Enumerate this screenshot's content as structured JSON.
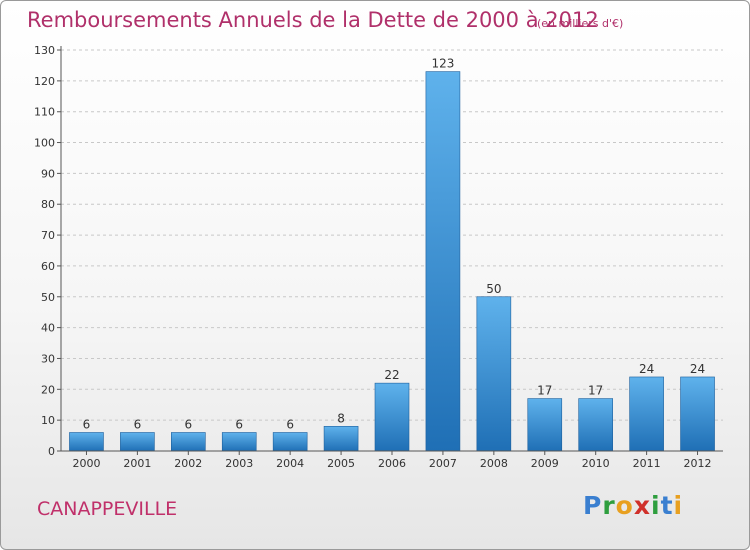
{
  "header": {
    "title": "Remboursements Annuels de la Dette de 2000 à 2012",
    "unit": "(en milliers d'€)"
  },
  "footer": {
    "commune": "CANAPPEVILLE",
    "brand_letters": [
      "P",
      "r",
      "o",
      "x",
      "i",
      "t",
      "i"
    ],
    "brand_colors": [
      "#3a7fd0",
      "#2e9e3e",
      "#e8a020",
      "#d0302a",
      "#2e9e3e",
      "#3a7fd0",
      "#e8a020"
    ]
  },
  "chart_data": {
    "type": "bar",
    "title": "Remboursements Annuels de la Dette de 2000 à 2012",
    "categories": [
      "2000",
      "2001",
      "2002",
      "2003",
      "2004",
      "2005",
      "2006",
      "2007",
      "2008",
      "2009",
      "2010",
      "2011",
      "2012"
    ],
    "values": [
      6,
      6,
      6,
      6,
      6,
      8,
      22,
      123,
      50,
      17,
      17,
      24,
      24
    ],
    "ylim": [
      0,
      130
    ],
    "yticks": [
      0,
      10,
      20,
      30,
      40,
      50,
      60,
      70,
      80,
      90,
      100,
      110,
      120,
      130
    ],
    "grid": true,
    "bar_color": "#3a8fd6"
  }
}
